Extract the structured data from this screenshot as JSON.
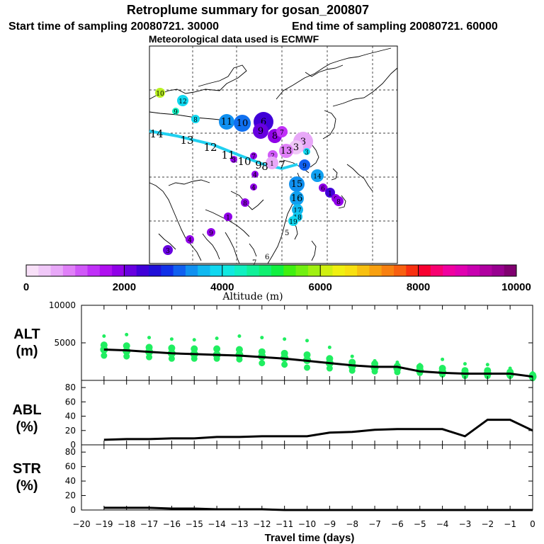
{
  "header": {
    "title": "Retroplume summary for gosan_200807",
    "start_label": "Start time of sampling 20080721. 30000",
    "end_label": "End time of sampling 20080721. 60000",
    "met_label": "Meteorological data used is ECMWF"
  },
  "colorbar": {
    "label": "Altitude (m)",
    "min": 0,
    "max": 10000,
    "tick_values": [
      "0",
      "2000",
      "4000",
      "6000",
      "8000",
      "10000"
    ],
    "colors": [
      "#f8e0f8",
      "#f0c8f8",
      "#e8a8f8",
      "#e080f8",
      "#d058f8",
      "#c030f8",
      "#b010f0",
      "#9000e8",
      "#6800e0",
      "#4000d8",
      "#2010d8",
      "#1030e8",
      "#1060f0",
      "#1090f0",
      "#10b8f0",
      "#10d8f0",
      "#10e8e0",
      "#10f0c0",
      "#10f098",
      "#10f070",
      "#10f040",
      "#40f010",
      "#70f010",
      "#a0f010",
      "#d0f010",
      "#f0f010",
      "#f8e010",
      "#f8c010",
      "#f8a010",
      "#f88010",
      "#f86010",
      "#f83010",
      "#f80030",
      "#f80070",
      "#f000a0",
      "#e000b0",
      "#c800b0",
      "#b000a0",
      "#980090",
      "#800070"
    ]
  },
  "map": {
    "plume_points": [
      {
        "label": "10",
        "color": "#b8f020"
      },
      {
        "label": "12",
        "color": "#10d8f0"
      },
      {
        "label": "9",
        "color": "#10f0c0"
      },
      {
        "label": "8",
        "color": "#10d8f0"
      },
      {
        "label": "11",
        "color": "#1090f0"
      },
      {
        "label": "10",
        "color": "#1070f0"
      },
      {
        "label": "6",
        "color": "#4000d8"
      },
      {
        "label": "9",
        "color": "#6800e0"
      },
      {
        "label": "8",
        "color": "#9000e8"
      },
      {
        "label": "7",
        "color": "#c030f8"
      },
      {
        "label": "3",
        "color": "#e8a8f8"
      },
      {
        "label": "3",
        "color": "#f0c8f8"
      },
      {
        "label": "13",
        "color": "#e080f8"
      },
      {
        "label": "2",
        "color": "#d058f8"
      },
      {
        "label": "1",
        "color": "#e8a8f8"
      },
      {
        "label": "4",
        "color": "#9000e8"
      },
      {
        "label": "9",
        "color": "#1060f0"
      },
      {
        "label": "14",
        "color": "#10a0f0"
      },
      {
        "label": "15",
        "color": "#1090f0"
      },
      {
        "label": "16",
        "color": "#10a0f0"
      },
      {
        "label": "17",
        "color": "#10b8f0"
      },
      {
        "label": "18",
        "color": "#10c8f0"
      },
      {
        "label": "19",
        "color": "#10d8f0"
      },
      {
        "label": "6",
        "color": "#9000e8"
      },
      {
        "label": "1",
        "color": "#4000d8"
      },
      {
        "label": "0",
        "color": "#9000e8"
      },
      {
        "label": "8",
        "color": "#9000e8"
      },
      {
        "label": "7",
        "color": "#9000e8"
      },
      {
        "label": "3",
        "color": "#9000e8"
      },
      {
        "label": "4",
        "color": "#9000e8"
      },
      {
        "label": "8",
        "color": "#9000e8"
      },
      {
        "label": "1",
        "color": "#9000e8"
      },
      {
        "label": "9",
        "color": "#9000e8"
      },
      {
        "label": "4",
        "color": "#9000e8"
      },
      {
        "label": "3",
        "color": "#6800e0"
      },
      {
        "label": "3",
        "color": "#10d8f0"
      }
    ],
    "track_labels": [
      "14",
      "13",
      "12",
      "11",
      "10",
      "9",
      "8",
      "7"
    ],
    "small_labels": [
      "5",
      "6",
      "7"
    ]
  },
  "chart_data": [
    {
      "type": "scatter",
      "title": "ALT (m)",
      "ylabel_line1": "ALT",
      "ylabel_line2": "(m)",
      "ylim": [
        0,
        10000
      ],
      "y_ticks": [
        "10000",
        "5000"
      ],
      "x": [
        -19,
        -18,
        -17,
        -16,
        -15,
        -14,
        -13,
        -12,
        -11,
        -10,
        -9,
        -8,
        -7,
        -6,
        -5,
        -4,
        -3,
        -2,
        -1,
        0
      ],
      "median_line": [
        4100,
        4000,
        3800,
        3600,
        3500,
        3400,
        3300,
        3100,
        2900,
        2600,
        2300,
        2000,
        1800,
        1800,
        1200,
        1000,
        900,
        900,
        900,
        500
      ],
      "scatter_series": [
        {
          "name": "top",
          "values": [
            5900,
            6100,
            5700,
            5500,
            5400,
            5600,
            5900,
            5700,
            5500,
            5300,
            4400,
            3200,
            2600,
            2400,
            2100,
            2800,
            2200,
            2100,
            1600,
            1000
          ]
        },
        {
          "name": "upper",
          "values": [
            4700,
            4600,
            4400,
            4300,
            4200,
            4200,
            4100,
            3800,
            3600,
            3400,
            2900,
            2400,
            2200,
            1900,
            1800,
            1600,
            1300,
            1300,
            1100,
            700
          ]
        },
        {
          "name": "middle",
          "values": [
            4100,
            3900,
            3800,
            3600,
            3500,
            3400,
            3400,
            3200,
            3000,
            2700,
            2300,
            1900,
            1700,
            1600,
            1300,
            1100,
            900,
            900,
            800,
            500
          ]
        },
        {
          "name": "lower",
          "values": [
            3300,
            3200,
            3100,
            2900,
            2900,
            2900,
            2800,
            2300,
            2100,
            1700,
            1600,
            1300,
            1200,
            1100,
            1000,
            800,
            600,
            600,
            600,
            300
          ]
        }
      ]
    },
    {
      "type": "line",
      "title": "ABL (%)",
      "ylabel_line1": "ABL",
      "ylabel_line2": "(%)",
      "ylim": [
        0,
        90
      ],
      "y_ticks": [
        "80",
        "60",
        "40",
        "20",
        "0"
      ],
      "x": [
        -19,
        -18,
        -17,
        -16,
        -15,
        -14,
        -13,
        -12,
        -11,
        -10,
        -9,
        -8,
        -7,
        -6,
        -5,
        -4,
        -3,
        -2,
        -1,
        0
      ],
      "values": [
        7,
        8,
        8,
        9,
        9,
        11,
        11,
        12,
        12,
        12,
        17,
        18,
        21,
        22,
        22,
        22,
        12,
        35,
        35,
        20
      ]
    },
    {
      "type": "line",
      "title": "STR (%)",
      "ylabel_line1": "STR",
      "ylabel_line2": "(%)",
      "ylim": [
        0,
        90
      ],
      "y_ticks": [
        "80",
        "60",
        "40",
        "20",
        "0"
      ],
      "x": [
        -19,
        -18,
        -17,
        -16,
        -15,
        -14,
        -13,
        -12,
        -11,
        -10,
        -9,
        -8,
        -7,
        -6,
        -5,
        -4,
        -3,
        -2,
        -1,
        0
      ],
      "values": [
        3,
        3,
        3,
        2,
        2,
        1,
        1,
        1,
        0,
        0,
        0,
        0,
        0,
        0,
        0,
        0,
        0,
        0,
        0,
        0
      ]
    }
  ],
  "xaxis": {
    "label": "Travel time (days)",
    "min": -20,
    "max": 0,
    "tick_labels": [
      "−20",
      "−19",
      "−18",
      "−17",
      "−16",
      "−15",
      "−14",
      "−13",
      "−12",
      "−11",
      "−10",
      "−9",
      "−8",
      "−7",
      "−6",
      "−5",
      "−4",
      "−3",
      "−2",
      "−1",
      "0"
    ]
  },
  "colors": {
    "scatter": "#20ee60",
    "line": "#000000",
    "plume_track": "#20d0f0"
  }
}
